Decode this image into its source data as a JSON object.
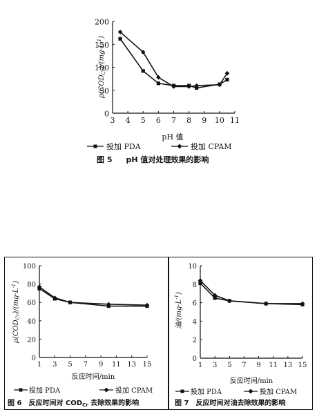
{
  "charts": [
    {
      "caption_num": "图 5",
      "caption_text": "pH 值对处理效果的影响",
      "xlabel": "pH 值",
      "ylabel": "ρ(COD",
      "ylabel_sub": "Cr",
      "ylabel_unit": ")/(mg·L",
      "ylabel_sup": "-1",
      "ylabel_end": ")",
      "legend_pda": "投加 PDA",
      "legend_cpam": "投加 CPAM"
    },
    {
      "caption_num": "图 6",
      "caption_text": "反应时间对 COD",
      "caption_sub": "Cr",
      "caption_end": " 去除效果的影响",
      "xlabel": "反应时间/min",
      "ylabel": "ρ(COD",
      "ylabel_sub": "Cr",
      "ylabel_unit": ")/(mg·L",
      "ylabel_sup": "-1",
      "ylabel_end": ")",
      "legend_pda": "投加 PDA",
      "legend_cpam": "投加 CPAM"
    },
    {
      "caption_num": "图 7",
      "caption_text": "反应时间对油去除效果的影响",
      "xlabel": "反应时间/min",
      "ylabel": "油/(mg·L",
      "ylabel_sup": "-1",
      "ylabel_end": ")",
      "legend_pda": "投加 PDA",
      "legend_cpam": "投加 CPAM"
    }
  ],
  "chart_data": [
    {
      "type": "line",
      "xlabel": "pH 值",
      "ylabel": "ρ(CODCr)/(mg·L-1)",
      "xlim": [
        3,
        11
      ],
      "ylim": [
        0,
        200
      ],
      "xticks": [
        3,
        4,
        5,
        6,
        7,
        8,
        9,
        10,
        11
      ],
      "yticks": [
        0,
        50,
        100,
        150,
        200
      ],
      "series": [
        {
          "name": "投加 PDA",
          "marker": "square",
          "x": [
            3.5,
            5,
            6,
            7,
            8,
            8.5,
            10,
            10.5
          ],
          "y": [
            162,
            92,
            65,
            60,
            60,
            55,
            63,
            73
          ]
        },
        {
          "name": "投加 CPAM",
          "marker": "diamond",
          "x": [
            3.5,
            5,
            6,
            7,
            8,
            8.5,
            10,
            10.5
          ],
          "y": [
            177,
            133,
            78,
            58,
            58,
            60,
            62,
            87
          ]
        }
      ]
    },
    {
      "type": "line",
      "xlabel": "反应时间/min",
      "ylabel": "ρ(CODCr)/(mg·L-1)",
      "xlim": [
        1,
        15
      ],
      "ylim": [
        0,
        100
      ],
      "xticks": [
        1,
        3,
        5,
        7,
        9,
        11,
        13,
        15
      ],
      "yticks": [
        0,
        20,
        40,
        60,
        80,
        100
      ],
      "series": [
        {
          "name": "投加 PDA",
          "marker": "square",
          "x": [
            1,
            3,
            5,
            10,
            15
          ],
          "y": [
            75,
            64,
            60,
            56,
            56
          ]
        },
        {
          "name": "投加 CPAM",
          "marker": "diamond",
          "x": [
            1,
            3,
            5,
            10,
            15
          ],
          "y": [
            77,
            65,
            60,
            58,
            57
          ]
        }
      ]
    },
    {
      "type": "line",
      "xlabel": "反应时间/min",
      "ylabel": "油/(mg·L-1)",
      "xlim": [
        1,
        15
      ],
      "ylim": [
        0,
        10
      ],
      "xticks": [
        1,
        3,
        5,
        7,
        9,
        11,
        13,
        15
      ],
      "yticks": [
        0,
        2,
        4,
        6,
        8,
        10
      ],
      "series": [
        {
          "name": "投加 PDA",
          "marker": "square",
          "x": [
            1,
            3,
            5,
            10,
            15
          ],
          "y": [
            8.1,
            6.5,
            6.2,
            5.9,
            5.8
          ]
        },
        {
          "name": "投加 CPAM",
          "marker": "diamond",
          "x": [
            1,
            3,
            5,
            10,
            15
          ],
          "y": [
            8.4,
            6.8,
            6.2,
            5.9,
            5.9
          ]
        }
      ]
    }
  ]
}
